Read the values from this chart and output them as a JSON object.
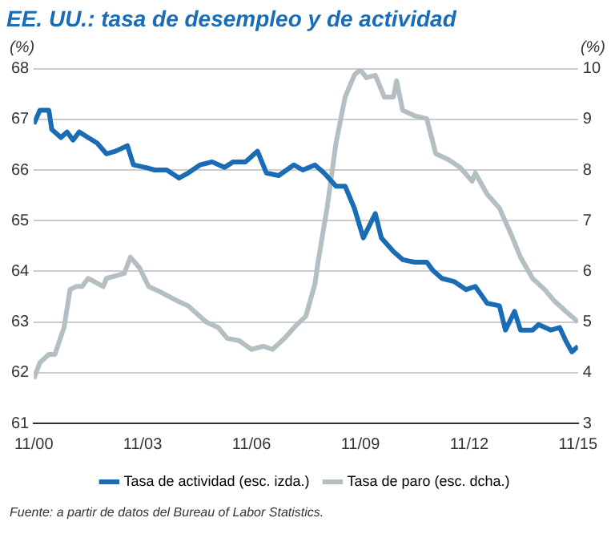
{
  "chart_data": {
    "type": "line",
    "title": "EE. UU.: tasa de desempleo y de actividad",
    "ylabel": "(%)",
    "y2label": "(%)",
    "xlim": [
      "2000-11",
      "2015-11"
    ],
    "xticks": [
      {
        "value": "2000-11",
        "label": "11/00"
      },
      {
        "value": "2003-11",
        "label": "11/03"
      },
      {
        "value": "2006-11",
        "label": "11/06"
      },
      {
        "value": "2009-11",
        "label": "11/09"
      },
      {
        "value": "2012-11",
        "label": "11/12"
      },
      {
        "value": "2015-11",
        "label": "11/15"
      }
    ],
    "ylim": [
      61,
      68
    ],
    "yticks": [
      61,
      62,
      63,
      64,
      65,
      66,
      67,
      68
    ],
    "y2lim": [
      3,
      10
    ],
    "y2ticks": [
      3,
      4,
      5,
      6,
      7,
      8,
      9,
      10
    ],
    "grid": "y",
    "legend": "bottom",
    "marker": "none",
    "line_style": "solid",
    "series": [
      {
        "name": "Tasa de actividad (esc. izda.)",
        "color": "#1a6db5",
        "axis": "y",
        "x": [
          "2000-11",
          "2001-01",
          "2001-04",
          "2001-05",
          "2001-08",
          "2001-10",
          "2001-12",
          "2002-02",
          "2002-05",
          "2002-08",
          "2002-11",
          "2003-02",
          "2003-06",
          "2003-08",
          "2003-12",
          "2004-03",
          "2004-07",
          "2004-11",
          "2005-02",
          "2005-06",
          "2005-10",
          "2006-02",
          "2006-05",
          "2006-09",
          "2007-01",
          "2007-04",
          "2007-08",
          "2008-01",
          "2008-04",
          "2008-08",
          "2008-11",
          "2009-03",
          "2009-06",
          "2009-09",
          "2009-12",
          "2010-04",
          "2010-06",
          "2010-10",
          "2011-01",
          "2011-05",
          "2011-09",
          "2011-11",
          "2012-02",
          "2012-06",
          "2012-10",
          "2013-01",
          "2013-05",
          "2013-09",
          "2013-11",
          "2014-02",
          "2014-04",
          "2014-08",
          "2014-10",
          "2015-02",
          "2015-05",
          "2015-07",
          "2015-09",
          "2015-11"
        ],
        "values": [
          66.91,
          67.18,
          67.18,
          66.8,
          66.64,
          66.75,
          66.59,
          66.75,
          66.64,
          66.53,
          66.32,
          66.37,
          66.48,
          66.1,
          66.05,
          66.0,
          66.0,
          65.84,
          65.94,
          66.1,
          66.16,
          66.05,
          66.16,
          66.16,
          66.37,
          65.94,
          65.89,
          66.1,
          66.0,
          66.1,
          65.94,
          65.68,
          65.68,
          65.25,
          64.66,
          65.14,
          64.66,
          64.39,
          64.23,
          64.18,
          64.18,
          64.02,
          63.86,
          63.8,
          63.64,
          63.7,
          63.37,
          63.32,
          62.84,
          63.21,
          62.84,
          62.84,
          62.95,
          62.84,
          62.89,
          62.63,
          62.41,
          62.52
        ]
      },
      {
        "name": "Tasa de paro (esc. dcha.)",
        "color": "#b4bfc3",
        "axis": "y2",
        "x": [
          "2000-11",
          "2001-01",
          "2001-04",
          "2001-06",
          "2001-09",
          "2001-11",
          "2002-01",
          "2002-03",
          "2002-05",
          "2002-07",
          "2002-10",
          "2002-11",
          "2003-02",
          "2003-05",
          "2003-07",
          "2003-10",
          "2004-01",
          "2004-05",
          "2004-10",
          "2005-02",
          "2005-08",
          "2005-12",
          "2006-03",
          "2006-07",
          "2006-11",
          "2007-03",
          "2007-06",
          "2007-10",
          "2008-02",
          "2008-05",
          "2008-08",
          "2008-09",
          "2008-12",
          "2009-03",
          "2009-06",
          "2009-09",
          "2009-11",
          "2010-01",
          "2010-04",
          "2010-07",
          "2010-10",
          "2010-11",
          "2011-01",
          "2011-05",
          "2011-09",
          "2011-12",
          "2012-04",
          "2012-08",
          "2012-12",
          "2013-01",
          "2013-05",
          "2013-09",
          "2014-01",
          "2014-04",
          "2014-08",
          "2014-12",
          "2015-03",
          "2015-07",
          "2015-11"
        ],
        "values": [
          3.88,
          4.2,
          4.36,
          4.36,
          4.89,
          5.64,
          5.7,
          5.7,
          5.86,
          5.8,
          5.7,
          5.86,
          5.91,
          5.96,
          6.28,
          6.07,
          5.7,
          5.59,
          5.43,
          5.32,
          5.0,
          4.89,
          4.68,
          4.63,
          4.46,
          4.52,
          4.46,
          4.68,
          4.95,
          5.11,
          5.75,
          6.18,
          7.25,
          8.53,
          9.44,
          9.87,
          9.98,
          9.82,
          9.87,
          9.44,
          9.44,
          9.76,
          9.18,
          9.07,
          9.01,
          8.32,
          8.21,
          8.05,
          7.78,
          7.94,
          7.52,
          7.25,
          6.71,
          6.28,
          5.86,
          5.64,
          5.43,
          5.21,
          5.0
        ]
      }
    ],
    "annotations": [
      "Fuente: a partir de datos del Bureau of Labor Statistics."
    ]
  }
}
